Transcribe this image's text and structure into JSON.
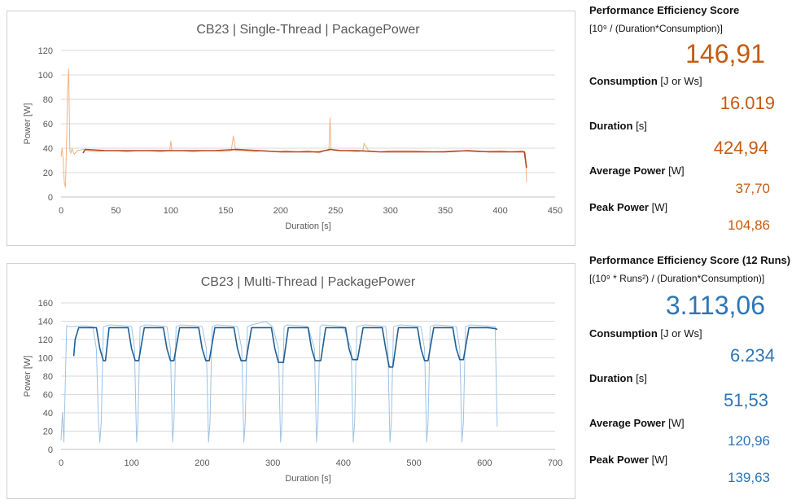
{
  "colors": {
    "st_main": "#b5451b",
    "st_light": "#f4b183",
    "mt_main": "#1f5f93",
    "mt_light": "#9dc3e6",
    "st_value": "#c55a11",
    "mt_value": "#2e75b6"
  },
  "chart_data": [
    {
      "type": "line",
      "title": "CB23 | Single-Thread | PackagePower",
      "xlabel": "Duration [s]",
      "ylabel": "Power [W]",
      "xlim": [
        0,
        450
      ],
      "ylim": [
        0,
        120
      ],
      "x_ticks": [
        "0",
        "50",
        "100",
        "150",
        "200",
        "250",
        "300",
        "350",
        "400",
        "450"
      ],
      "y_ticks": [
        "0",
        "20",
        "40",
        "60",
        "80",
        "100",
        "120"
      ],
      "grid": true,
      "legend": "none",
      "series": [
        {
          "style": "raw",
          "x": [
            0,
            1,
            2,
            3,
            4,
            5,
            6,
            7,
            8,
            9,
            10,
            12,
            15,
            20,
            30,
            40,
            50,
            60,
            70,
            80,
            90,
            99,
            100,
            101,
            110,
            120,
            130,
            140,
            150,
            155,
            157,
            159,
            165,
            175,
            185,
            195,
            205,
            215,
            225,
            235,
            240,
            244,
            245,
            246,
            250,
            260,
            270,
            275,
            276,
            280,
            290,
            300,
            320,
            340,
            360,
            380,
            400,
            410,
            420,
            423,
            424
          ],
          "y": [
            33,
            40,
            30,
            12,
            8,
            42,
            88,
            104.86,
            38,
            36,
            40,
            35,
            38,
            39,
            37,
            38,
            38,
            37,
            38,
            38,
            37,
            38,
            46,
            38,
            38,
            37,
            38,
            38,
            37,
            38,
            50,
            38,
            38,
            37,
            38,
            37,
            38,
            37,
            38,
            36,
            38,
            38,
            65,
            39,
            38,
            38,
            37,
            38,
            44,
            38,
            37,
            38,
            38,
            37,
            38,
            37,
            38,
            37,
            38,
            36,
            12
          ]
        },
        {
          "style": "smoothed",
          "x": [
            20,
            22,
            40,
            60,
            80,
            100,
            120,
            140,
            160,
            180,
            200,
            220,
            235,
            245,
            255,
            270,
            290,
            310,
            330,
            350,
            370,
            390,
            410,
            422,
            424
          ],
          "y": [
            36,
            39,
            38,
            38,
            38,
            38,
            38,
            38,
            39,
            38,
            37,
            37,
            37,
            39,
            38,
            38,
            37,
            37,
            37,
            37,
            38,
            37,
            37,
            37,
            24
          ]
        }
      ]
    },
    {
      "type": "line",
      "title": "CB23 | Multi-Thread | PackagePower",
      "xlabel": "Duration [s]",
      "ylabel": "Power [W]",
      "xlim": [
        0,
        700
      ],
      "ylim": [
        0,
        160
      ],
      "x_ticks": [
        "0",
        "100",
        "200",
        "300",
        "400",
        "500",
        "600",
        "700"
      ],
      "y_ticks": [
        "0",
        "20",
        "40",
        "60",
        "80",
        "100",
        "120",
        "140",
        "160"
      ],
      "grid": true,
      "legend": "none",
      "series": [
        {
          "style": "raw",
          "x": [
            0,
            2,
            4,
            8,
            14,
            30,
            45,
            50,
            53,
            55,
            57,
            60,
            70,
            90,
            100,
            104,
            107,
            109,
            112,
            120,
            140,
            150,
            155,
            158,
            160,
            163,
            170,
            190,
            200,
            206,
            209,
            211,
            214,
            220,
            240,
            250,
            256,
            259,
            261,
            264,
            270,
            290,
            300,
            308,
            311,
            313,
            316,
            320,
            340,
            350,
            359,
            362,
            364,
            367,
            370,
            390,
            400,
            411,
            414,
            416,
            419,
            430,
            450,
            460,
            463,
            466,
            468,
            471,
            480,
            500,
            510,
            515,
            518,
            520,
            523,
            530,
            550,
            560,
            565,
            568,
            570,
            573,
            580,
            600,
            615,
            618
          ],
          "y": [
            10,
            40,
            8,
            135,
            134,
            135,
            134,
            110,
            30,
            8,
            30,
            134,
            136,
            135,
            134,
            110,
            8,
            30,
            134,
            136,
            135,
            134,
            110,
            8,
            30,
            134,
            136,
            135,
            134,
            110,
            8,
            30,
            134,
            136,
            135,
            134,
            110,
            8,
            30,
            134,
            136,
            139.63,
            134,
            110,
            8,
            30,
            134,
            136,
            135,
            134,
            110,
            8,
            30,
            134,
            136,
            135,
            134,
            110,
            8,
            30,
            134,
            136,
            135,
            134,
            110,
            8,
            30,
            134,
            136,
            135,
            134,
            110,
            8,
            30,
            134,
            136,
            135,
            134,
            110,
            8,
            30,
            134,
            136,
            135,
            134,
            25
          ]
        },
        {
          "style": "smoothed",
          "x": [
            18,
            20,
            25,
            50,
            55,
            60,
            63,
            68,
            95,
            100,
            105,
            110,
            118,
            145,
            150,
            155,
            160,
            168,
            195,
            200,
            205,
            210,
            218,
            245,
            250,
            255,
            262,
            270,
            298,
            303,
            308,
            315,
            322,
            350,
            355,
            360,
            368,
            375,
            403,
            408,
            413,
            420,
            428,
            455,
            460,
            465,
            470,
            478,
            505,
            510,
            515,
            520,
            528,
            555,
            560,
            565,
            570,
            578,
            605,
            615,
            618
          ],
          "y": [
            102,
            120,
            133,
            133,
            110,
            97,
            97,
            133,
            133,
            110,
            97,
            97,
            133,
            133,
            110,
            97,
            97,
            133,
            133,
            110,
            97,
            97,
            133,
            133,
            110,
            97,
            97,
            133,
            133,
            110,
            95,
            95,
            133,
            133,
            110,
            97,
            97,
            133,
            133,
            110,
            98,
            98,
            133,
            133,
            110,
            90,
            90,
            133,
            133,
            110,
            97,
            97,
            133,
            133,
            110,
            98,
            98,
            133,
            133,
            132,
            131
          ]
        }
      ]
    }
  ],
  "stats": {
    "single": {
      "score_label": "Performance Efficiency Score",
      "score_formula": "[10⁹ / (Duration*Consumption)]",
      "score_value": "146,91",
      "consumption_label": "Consumption",
      "consumption_unit": "[J or Ws]",
      "consumption_value": "16.019",
      "duration_label": "Duration",
      "duration_unit": "[s]",
      "duration_value": "424,94",
      "avg_label": "Average Power",
      "avg_unit": "[W]",
      "avg_value": "37,70",
      "peak_label": "Peak Power",
      "peak_unit": "[W]",
      "peak_value": "104,86"
    },
    "multi": {
      "score_label": "Performance Efficiency Score (12 Runs)",
      "score_formula": "[(10⁹ * Runs²) / (Duration*Consumption)]",
      "score_value": "3.113,06",
      "consumption_label": "Consumption",
      "consumption_unit": "[J or Ws]",
      "consumption_value": "6.234",
      "duration_label": "Duration",
      "duration_unit": "[s]",
      "duration_value": "51,53",
      "avg_label": "Average Power",
      "avg_unit": "[W]",
      "avg_value": "120,96",
      "peak_label": "Peak Power",
      "peak_unit": "[W]",
      "peak_value": "139,63"
    }
  }
}
